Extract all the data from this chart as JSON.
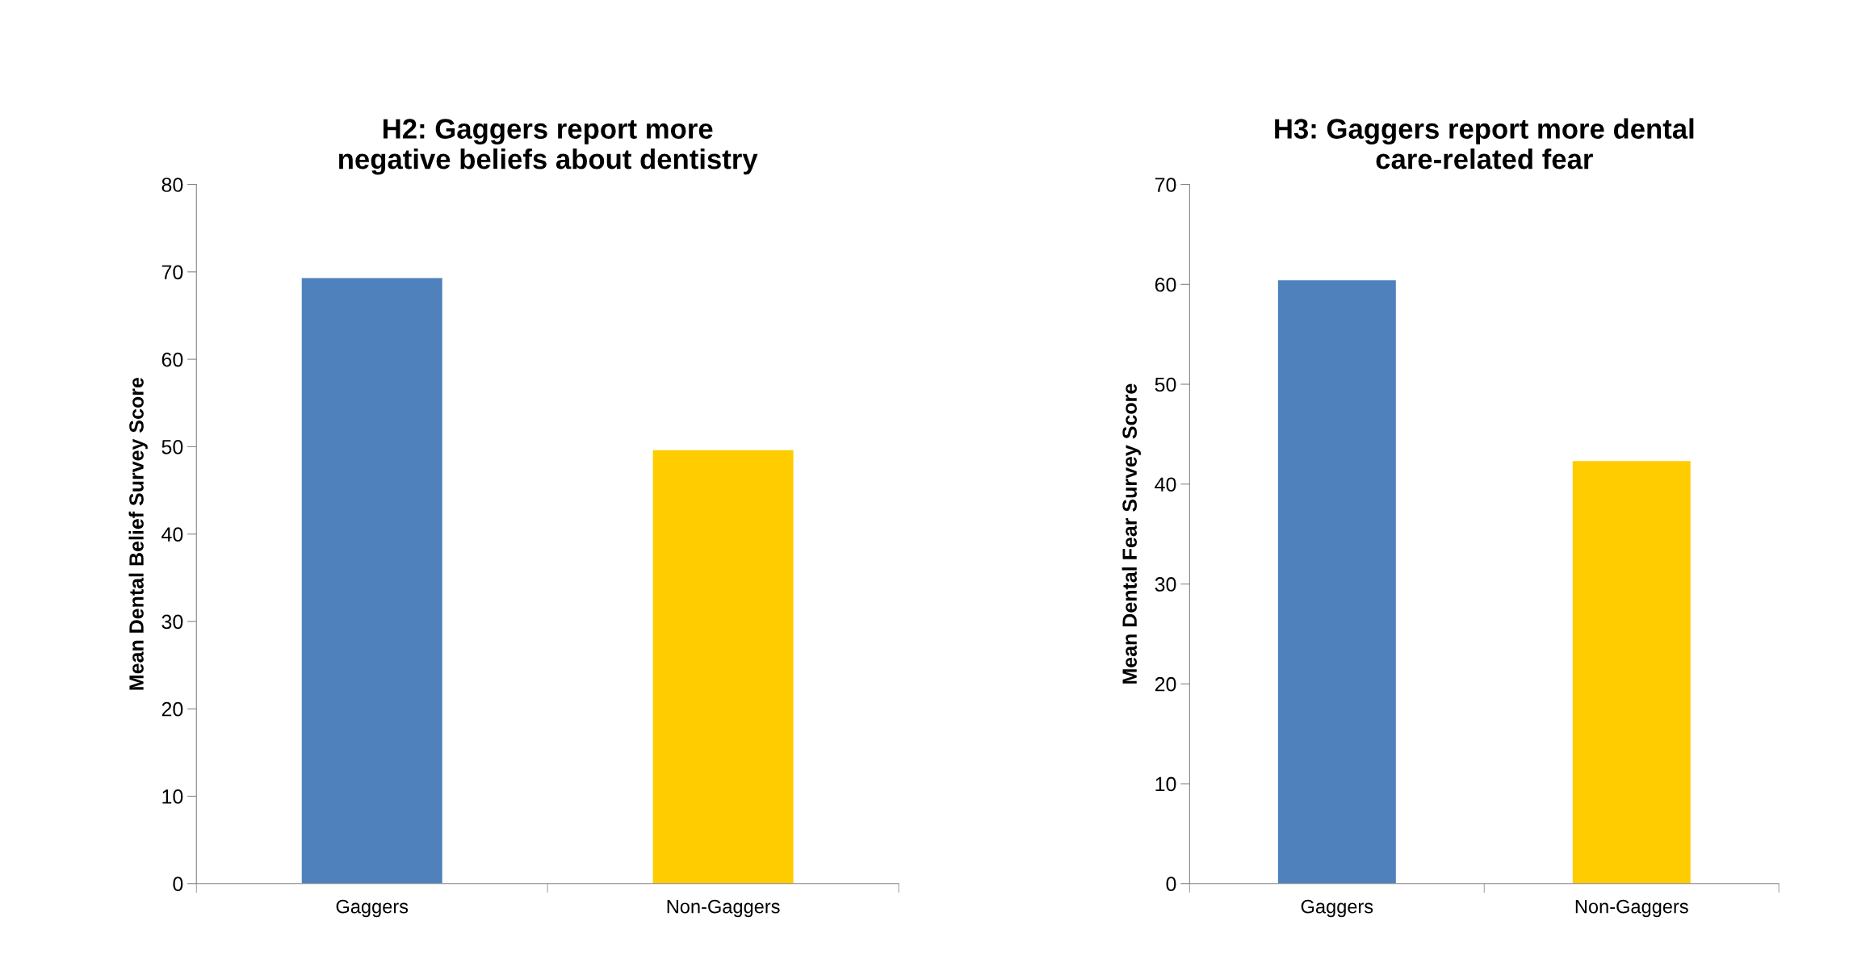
{
  "chart_data": [
    {
      "type": "bar",
      "title": "H2: Gaggers report more\nnegative beliefs about dentistry",
      "ylabel": "Mean Dental Belief Survey Score",
      "categories": [
        "Gaggers",
        "Non-Gaggers"
      ],
      "values": [
        69.3,
        49.6
      ],
      "colors": [
        "#4f81bd",
        "#ffcc00"
      ],
      "ylim": [
        0,
        80
      ],
      "yticks": [
        0,
        10,
        20,
        30,
        40,
        50,
        60,
        70,
        80
      ],
      "grid": false,
      "legend": false
    },
    {
      "type": "bar",
      "title": "H3: Gaggers report more dental\ncare-related fear",
      "ylabel": "Mean Dental Fear Survey Score",
      "categories": [
        "Gaggers",
        "Non-Gaggers"
      ],
      "values": [
        60.4,
        42.3
      ],
      "colors": [
        "#4f81bd",
        "#ffcc00"
      ],
      "ylim": [
        0,
        70
      ],
      "yticks": [
        0,
        10,
        20,
        30,
        40,
        50,
        60,
        70
      ],
      "grid": false,
      "legend": false
    }
  ]
}
